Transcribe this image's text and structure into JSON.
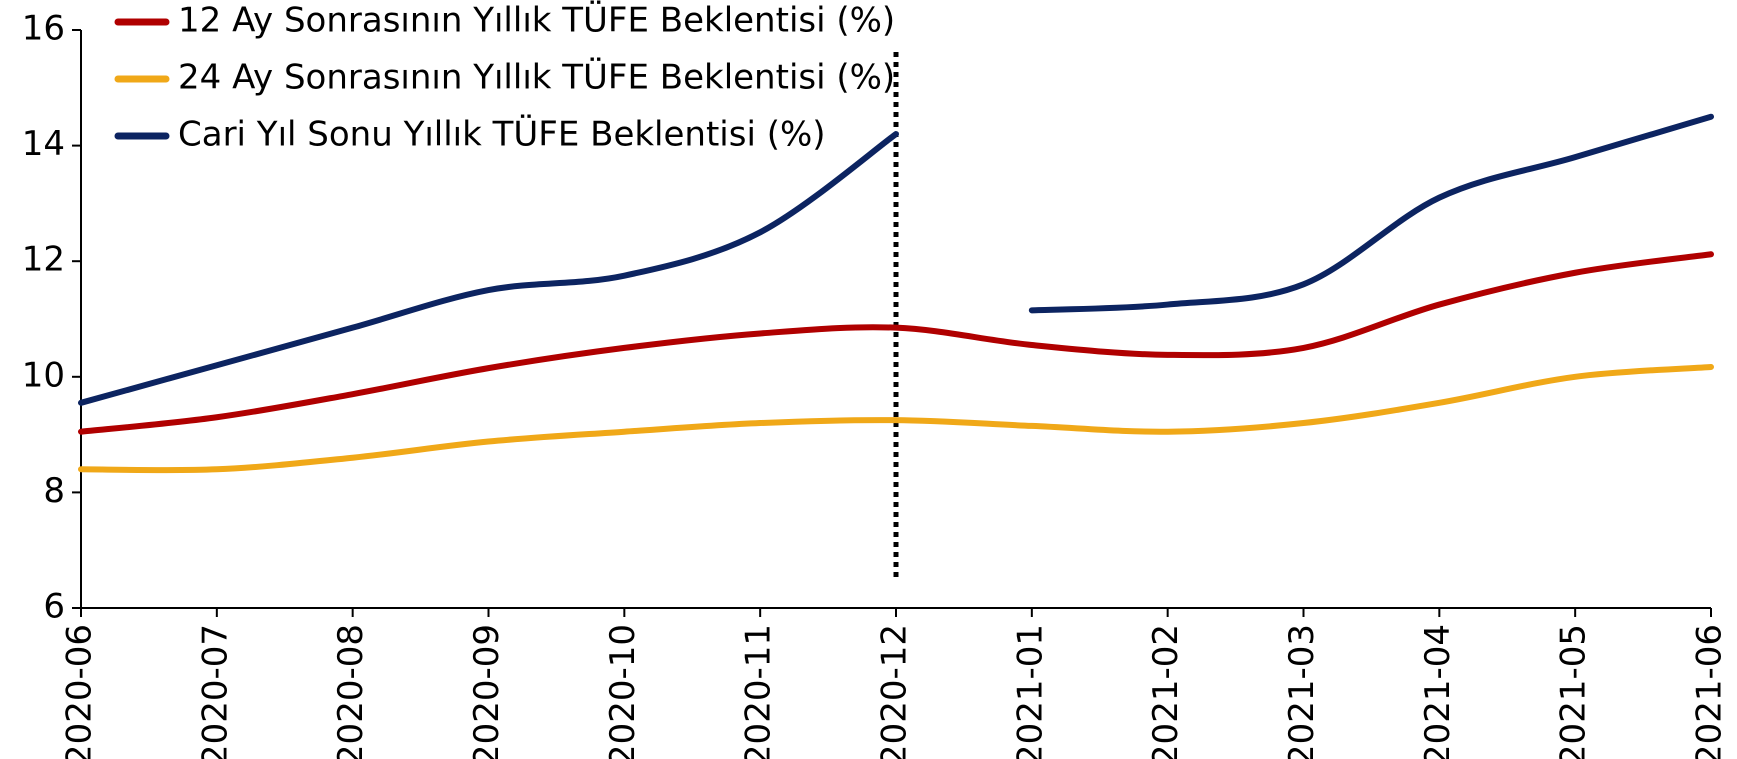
{
  "chart_data": {
    "type": "line",
    "categories": [
      "2020-06",
      "2020-07",
      "2020-08",
      "2020-09",
      "2020-10",
      "2020-11",
      "2020-12",
      "2021-01",
      "2021-02",
      "2021-03",
      "2021-04",
      "2021-05",
      "2021-06"
    ],
    "series": [
      {
        "name": "12 Ay Sonrasının Yıllık TÜFE Beklentisi (%)",
        "color": "#b00000",
        "values": [
          9.05,
          9.3,
          9.7,
          10.15,
          10.5,
          10.75,
          10.85,
          10.55,
          10.38,
          10.5,
          11.25,
          11.8,
          12.12
        ]
      },
      {
        "name": "24 Ay Sonrasının Yıllık TÜFE Beklentisi (%)",
        "color": "#f0a818",
        "values": [
          8.4,
          8.4,
          8.6,
          8.88,
          9.05,
          9.2,
          9.25,
          9.15,
          9.05,
          9.2,
          9.55,
          10.0,
          10.17
        ]
      },
      {
        "name": "Cari Yıl Sonu Yıllık TÜFE Beklentisi (%)",
        "color": "#0c2461",
        "break_after": "2020-12",
        "values": [
          9.55,
          10.2,
          10.85,
          11.5,
          11.75,
          12.5,
          14.2,
          11.15,
          11.25,
          11.6,
          13.1,
          13.8,
          14.5
        ]
      }
    ],
    "vline": "2020-12",
    "ylim": [
      6,
      16
    ],
    "yticks": [
      6,
      8,
      10,
      12,
      14,
      16
    ],
    "legend": "upper left"
  }
}
